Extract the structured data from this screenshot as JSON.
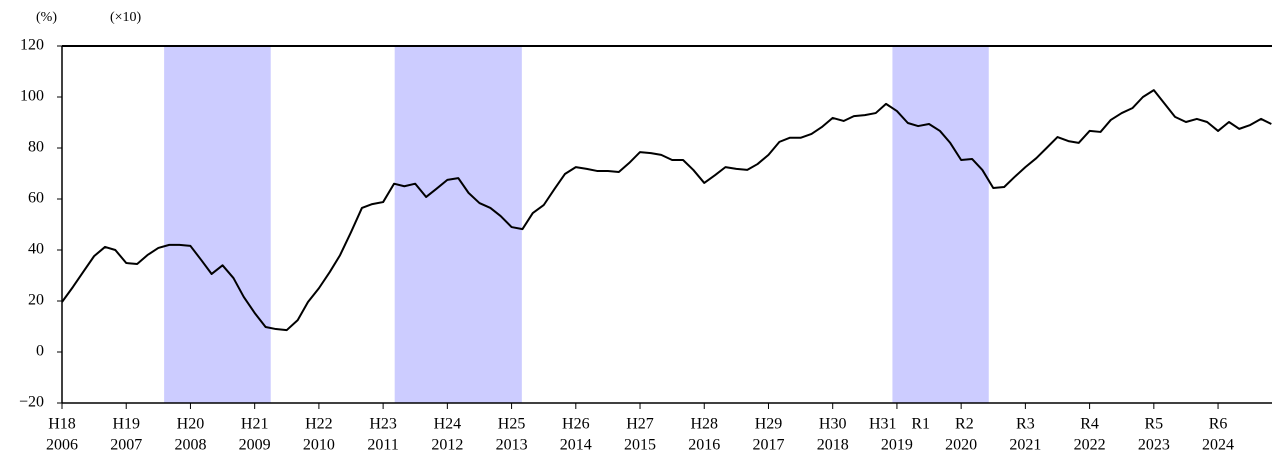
{
  "chart_data": {
    "type": "line",
    "unit_label": "(%)",
    "scale_label": "(×10)",
    "x": [
      2006,
      2006.17,
      2006.33,
      2006.5,
      2006.67,
      2006.83,
      2007,
      2007.17,
      2007.33,
      2007.5,
      2007.67,
      2007.83,
      2008,
      2008.17,
      2008.33,
      2008.5,
      2008.67,
      2008.83,
      2009,
      2009.17,
      2009.33,
      2009.5,
      2009.67,
      2009.83,
      2010,
      2010.17,
      2010.33,
      2010.5,
      2010.67,
      2010.83,
      2011,
      2011.17,
      2011.33,
      2011.5,
      2011.67,
      2011.83,
      2012,
      2012.17,
      2012.33,
      2012.5,
      2012.67,
      2012.83,
      2013,
      2013.17,
      2013.33,
      2013.5,
      2013.67,
      2013.83,
      2014,
      2014.17,
      2014.33,
      2014.5,
      2014.67,
      2014.83,
      2015,
      2015.17,
      2015.33,
      2015.5,
      2015.67,
      2015.83,
      2016,
      2016.17,
      2016.33,
      2016.5,
      2016.67,
      2016.83,
      2017,
      2017.17,
      2017.33,
      2017.5,
      2017.67,
      2017.83,
      2018,
      2018.17,
      2018.33,
      2018.5,
      2018.67,
      2018.83,
      2019,
      2019.17,
      2019.33,
      2019.5,
      2019.67,
      2019.83,
      2020,
      2020.17,
      2020.33,
      2020.5,
      2020.67,
      2020.83,
      2021,
      2021.17,
      2021.33,
      2021.5,
      2021.67,
      2021.83,
      2022,
      2022.17,
      2022.33,
      2022.5,
      2022.67,
      2022.83,
      2023,
      2023.17,
      2023.33,
      2023.5,
      2023.67,
      2023.83,
      2024,
      2024.17,
      2024.33,
      2024.5,
      2024.67,
      2024.83
    ],
    "series": [
      {
        "color": "#000000",
        "values": [
          19.6,
          25.5,
          31.4,
          37.6,
          41.2,
          40,
          34.9,
          34.5,
          38,
          40.8,
          42,
          42,
          41.6,
          36,
          30.6,
          34,
          29,
          21.6,
          15.3,
          9.8,
          9,
          8.6,
          12.5,
          19.6,
          25,
          31.4,
          38,
          47,
          56.5,
          58,
          58.8,
          66,
          65,
          66,
          60.8,
          64,
          67.5,
          68.2,
          62.4,
          58.4,
          56.5,
          53.3,
          49,
          48.2,
          54.5,
          57.6,
          64,
          69.8,
          72.5,
          71.8,
          71,
          71,
          70.6,
          74.1,
          78.4,
          78,
          77.3,
          75.3,
          75.3,
          71.4,
          66.3,
          69.4,
          72.5,
          71.8,
          71.4,
          73.7,
          77.3,
          82.4,
          84,
          84,
          85.5,
          88.2,
          91.8,
          90.6,
          92.5,
          92.9,
          93.7,
          97.3,
          94.5,
          89.8,
          88.6,
          89.4,
          86.7,
          82,
          75.3,
          75.7,
          71.4,
          64.3,
          64.7,
          68.6,
          72.5,
          76,
          80,
          84.3,
          82.7,
          82,
          86.7,
          86.3,
          91,
          93.7,
          95.7,
          100,
          102.7,
          97.3,
          92.2,
          90.2,
          91.4,
          90.2,
          86.7,
          90.2,
          87.5,
          89,
          91.4,
          89.4
        ]
      }
    ],
    "shaded": [
      [
        2007.59,
        2009.25
      ],
      [
        2011.18,
        2013.16
      ],
      [
        2018.93,
        2020.43
      ]
    ],
    "shade_color": "#ccccff",
    "xlim": [
      2006,
      2024.84
    ],
    "ylim": [
      -20,
      120
    ],
    "yticks": [
      {
        "value": -20,
        "label": "−20"
      },
      0,
      20,
      40,
      60,
      80,
      100,
      120
    ],
    "xticks": [
      2006,
      2007,
      2008,
      2009,
      2010,
      2011,
      2012,
      2013,
      2014,
      2015,
      2016,
      2017,
      2018,
      2019,
      2020,
      2021,
      2022,
      2023,
      2024
    ],
    "era_ticks": [
      {
        "value": 2006,
        "label": "H18"
      },
      {
        "value": 2007,
        "label": "H19"
      },
      {
        "value": 2008,
        "label": "H20"
      },
      {
        "value": 2009,
        "label": "H21"
      },
      {
        "value": 2010,
        "label": "H22"
      },
      {
        "value": 2011,
        "label": "H23"
      },
      {
        "value": 2012,
        "label": "H24"
      },
      {
        "value": 2013,
        "label": "H25"
      },
      {
        "value": 2014,
        "label": "H26"
      },
      {
        "value": 2015,
        "label": "H27"
      },
      {
        "value": 2016,
        "label": "H28"
      },
      {
        "value": 2017,
        "label": "H29"
      },
      {
        "value": 2018,
        "label": "H30"
      },
      {
        "value": 2018.78,
        "label": "H31"
      },
      {
        "value": 2019.37,
        "label": "R1"
      },
      {
        "value": 2020.05,
        "label": "R2"
      },
      {
        "value": 2021,
        "label": "R3"
      },
      {
        "value": 2022,
        "label": "R4"
      },
      {
        "value": 2023,
        "label": "R5"
      },
      {
        "value": 2024,
        "label": "R6"
      }
    ]
  }
}
